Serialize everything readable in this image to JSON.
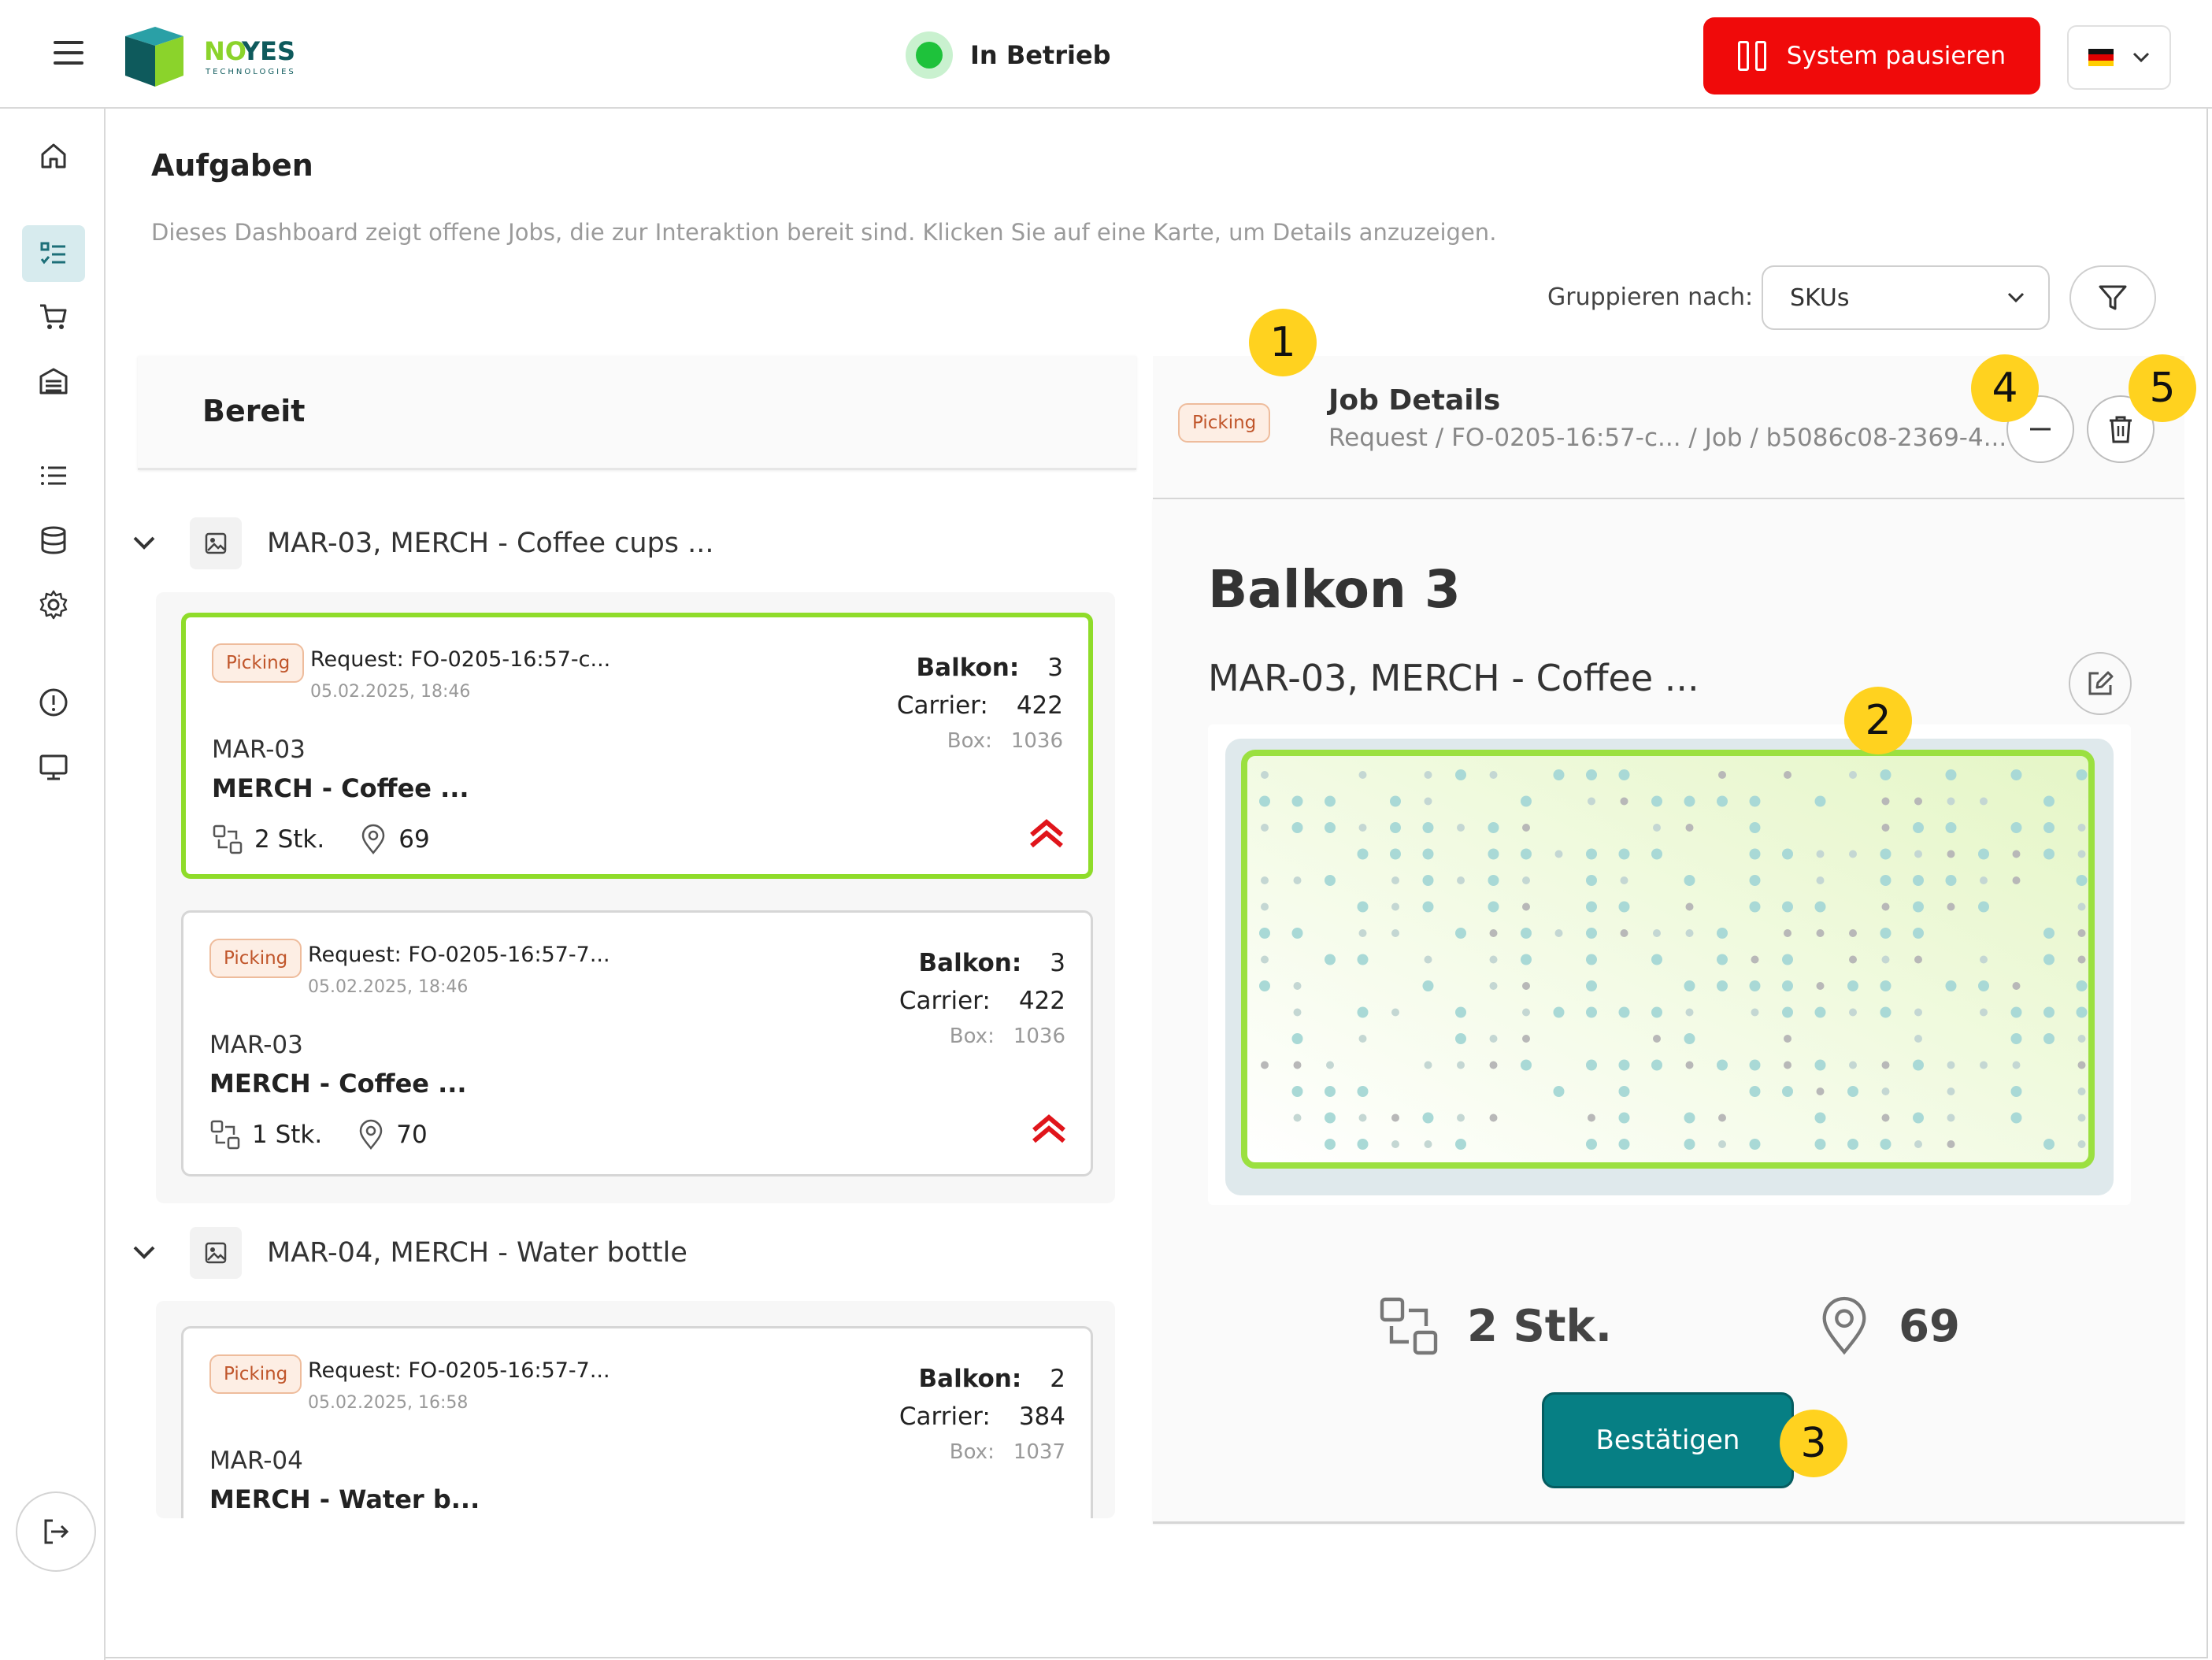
{
  "header": {
    "status_text": "In Betrieb",
    "pause_label": "System pausieren"
  },
  "page": {
    "title": "Aufgaben",
    "description": "Dieses Dashboard zeigt offene Jobs, die zur Interaktion bereit sind. Klicken Sie auf eine Karte, um Details anzuzeigen.",
    "group_label": "Gruppieren nach:",
    "group_value": "SKUs"
  },
  "column": {
    "title": "Bereit"
  },
  "groups": [
    {
      "title": "MAR-03, MERCH - Coffee cups ...",
      "cards": [
        {
          "tag": "Picking",
          "request": "Request: FO-0205-16:57-c...",
          "date": "05.02.2025, 18:46",
          "balkon_label": "Balkon:",
          "balkon": "3",
          "carrier_label": "Carrier:",
          "carrier": "422",
          "box_label": "Box:",
          "box": "1036",
          "sku": "MAR-03",
          "name": "MERCH - Coffee ...",
          "qty": "2 Stk.",
          "loc": "69"
        },
        {
          "tag": "Picking",
          "request": "Request: FO-0205-16:57-7...",
          "date": "05.02.2025, 18:46",
          "balkon_label": "Balkon:",
          "balkon": "3",
          "carrier_label": "Carrier:",
          "carrier": "422",
          "box_label": "Box:",
          "box": "1036",
          "sku": "MAR-03",
          "name": "MERCH - Coffee ...",
          "qty": "1 Stk.",
          "loc": "70"
        }
      ]
    },
    {
      "title": "MAR-04, MERCH - Water bottle",
      "cards": [
        {
          "tag": "Picking",
          "request": "Request: FO-0205-16:57-7...",
          "date": "05.02.2025, 16:58",
          "balkon_label": "Balkon:",
          "balkon": "2",
          "carrier_label": "Carrier:",
          "carrier": "384",
          "box_label": "Box:",
          "box": "1037",
          "sku": "MAR-04",
          "name": "MERCH - Water b..."
        }
      ]
    }
  ],
  "detail": {
    "tag": "Picking",
    "title": "Job Details",
    "path": "Request / FO-0205-16:57-c... / Job / b5086c08-2369-4...",
    "location_title": "Balkon 3",
    "item_title": "MAR-03, MERCH - Coffee ...",
    "qty": "2 Stk.",
    "loc": "69",
    "confirm_label": "Bestätigen"
  },
  "callouts": [
    "1",
    "2",
    "3",
    "4",
    "5"
  ],
  "icons": {
    "menu": "hamburger-icon",
    "logo": "noyes-logo",
    "pause": "pause-icon",
    "flag": "german-flag-icon",
    "sidebar": [
      "home-icon",
      "tasks-icon",
      "cart-icon",
      "storage-icon",
      "list-icon",
      "database-icon",
      "settings-icon",
      "alert-icon",
      "monitor-icon",
      "logout-icon"
    ]
  },
  "colors": {
    "accent": "#067f84",
    "danger": "#f00a0a",
    "selected_border": "#8fdc2a",
    "status": "#1ec23b",
    "callout": "#ffd21f"
  }
}
